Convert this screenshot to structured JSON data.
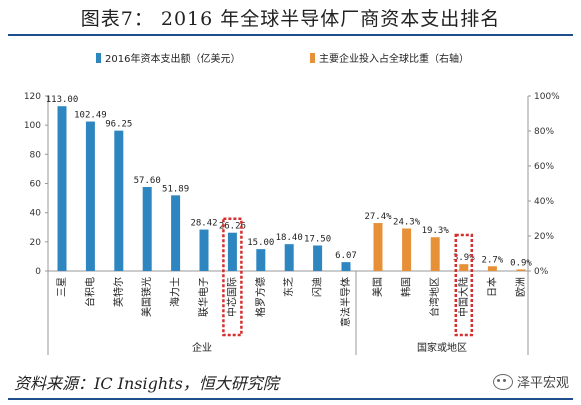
{
  "figure_title": "图表7：  2016 年全球半导体厂商资本支出排名",
  "source": "资料来源：IC Insights，恒大研究院",
  "watermark": "泽平宏观",
  "colors": {
    "bar_blue": "#2e86c1",
    "bar_orange": "#e69138",
    "highlight_red": "#d32f2f",
    "rule_blue": "#1f4e8c"
  },
  "chart_data": {
    "type": "bar",
    "legend": [
      {
        "label": "2016年资本支出额（亿美元）",
        "color": "#2e86c1"
      },
      {
        "label": "主要企业投入占全球比重（右轴）",
        "color": "#e69138"
      }
    ],
    "left_axis": {
      "ticks": [
        "0",
        "20",
        "40",
        "60",
        "80",
        "100",
        "120"
      ],
      "ylim": [
        0,
        120
      ]
    },
    "right_axis": {
      "ticks": [
        "0%",
        "20%",
        "40%",
        "60%",
        "80%",
        "100%"
      ],
      "ylim": [
        0,
        100
      ]
    },
    "series_companies": {
      "name": "2016年资本支出额（亿美元）",
      "categories": [
        "三星",
        "台积电",
        "英特尔",
        "美国镁光",
        "海力士",
        "联华电子",
        "中芯国际",
        "格罗方德",
        "东芝",
        "闪迪",
        "意法半导体"
      ],
      "values": [
        113.0,
        102.49,
        96.25,
        57.6,
        51.89,
        28.42,
        26.26,
        15.0,
        18.4,
        17.5,
        6.07
      ],
      "labels": [
        "113.00",
        "102.49",
        "96.25",
        "57.60",
        "51.89",
        "28.42",
        "26.26",
        "15.00",
        "18.40",
        "17.50",
        "6.07"
      ],
      "highlighted": "中芯国际"
    },
    "series_regions": {
      "name": "主要企业投入占全球比重（右轴）",
      "categories": [
        "美国",
        "韩国",
        "台湾地区",
        "中国大陆",
        "日本",
        "欧洲"
      ],
      "values": [
        27.4,
        24.3,
        19.3,
        3.9,
        2.7,
        0.9
      ],
      "labels": [
        "27.4%",
        "24.3%",
        "19.3%",
        "3.9%",
        "2.7%",
        "0.9%"
      ],
      "highlighted": "中国大陆"
    },
    "groups": [
      "企业",
      "国家或地区"
    ]
  }
}
